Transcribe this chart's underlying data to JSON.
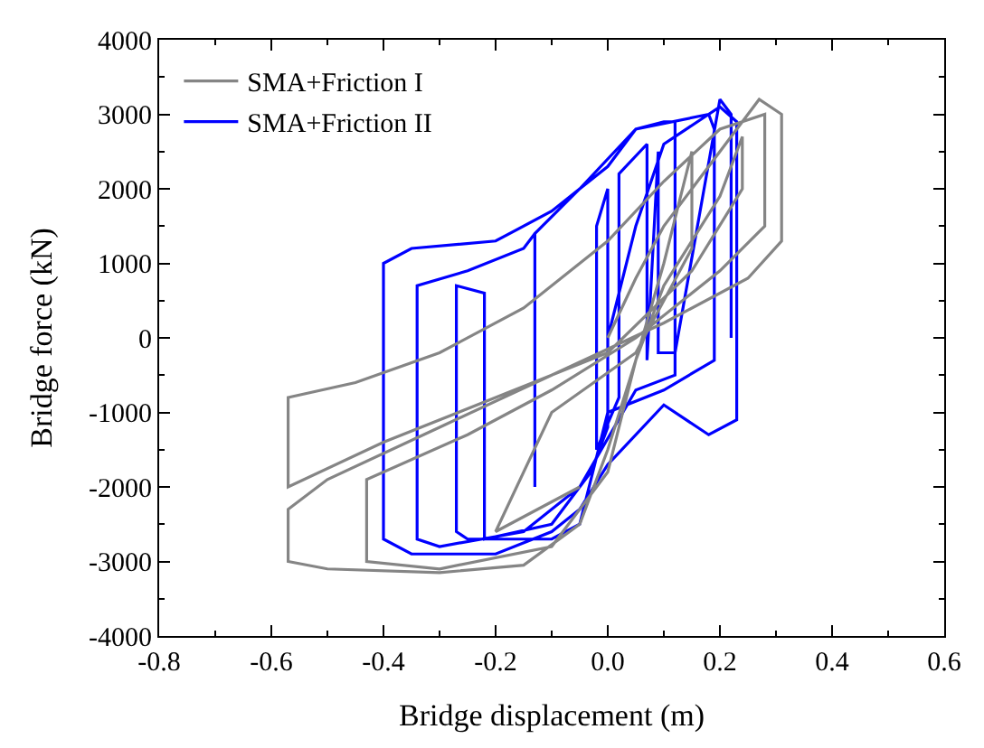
{
  "chart_data": {
    "type": "line",
    "xlabel": "Bridge displacement (m)",
    "ylabel": "Bridge force (kN)",
    "xlim": [
      -0.8,
      0.6
    ],
    "xticks": [
      {
        "value": -0.8,
        "label": "-0.8"
      },
      {
        "value": -0.6,
        "label": "-0.6"
      },
      {
        "value": -0.4,
        "label": "-0.4"
      },
      {
        "value": -0.2,
        "label": "-0.2"
      },
      {
        "value": 0,
        "label": "0.0"
      },
      {
        "value": 0.2,
        "label": "0.2"
      },
      {
        "value": 0.4,
        "label": "0.4"
      },
      {
        "value": 0.6,
        "label": "0.6"
      }
    ],
    "ylim": [
      -4000,
      4000
    ],
    "yticks": [
      -4000,
      -3000,
      -2000,
      -1000,
      0,
      1000,
      2000,
      3000,
      4000
    ],
    "legend": "top left",
    "marker": "none",
    "line_style": "solid",
    "series": [
      {
        "name": "SMA+Friction I",
        "color": "#858585",
        "x": [
          0,
          0.05,
          0.1,
          0.2,
          0.27,
          0.31,
          0.31,
          0.25,
          0.1,
          -0.1,
          -0.3,
          -0.5,
          -0.57,
          -0.57,
          -0.5,
          -0.3,
          -0.15,
          -0.05,
          0,
          0.05,
          0.1,
          0.2,
          0.24,
          0.24,
          0.15,
          0,
          -0.2,
          -0.4,
          -0.57,
          -0.57,
          -0.45,
          -0.3,
          -0.15,
          0,
          0.1,
          0.2,
          0.28,
          0.28,
          0.2,
          0.05,
          -0.1,
          -0.25,
          -0.43,
          -0.43,
          -0.3,
          -0.1,
          0,
          0.05,
          0.1,
          0.15,
          0.15,
          0.05,
          -0.1,
          -0.2,
          -0.05
        ],
        "values": [
          0,
          800,
          1500,
          2500,
          3200,
          3000,
          1300,
          800,
          200,
          -500,
          -1200,
          -1900,
          -2300,
          -3000,
          -3100,
          -3150,
          -3050,
          -2500,
          -1500,
          -300,
          700,
          1900,
          2700,
          2000,
          900,
          -200,
          -800,
          -1400,
          -2000,
          -800,
          -600,
          -200,
          400,
          1300,
          2100,
          2800,
          3000,
          1500,
          900,
          0,
          -700,
          -1300,
          -1900,
          -3000,
          -3100,
          -2800,
          -1800,
          -300,
          1000,
          2500,
          1200,
          -200,
          -1000,
          -2600,
          -2000
        ]
      },
      {
        "name": "SMA+Friction II",
        "color": "#0000ff",
        "x": [
          0,
          0.05,
          0.1,
          0.2,
          0.23,
          0.23,
          0.18,
          0.1,
          0,
          -0.05,
          -0.1,
          -0.2,
          -0.35,
          -0.4,
          -0.4,
          -0.35,
          -0.2,
          -0.1,
          0,
          0.05,
          0.1,
          0.12,
          0.12,
          0.05,
          -0.05,
          -0.15,
          -0.3,
          -0.34,
          -0.34,
          -0.25,
          -0.15,
          -0.13,
          -0.13,
          -0.13,
          -0.05,
          0.05,
          0.18,
          0.19,
          0.19,
          0.1,
          0,
          -0.05,
          -0.1,
          -0.25,
          -0.27,
          -0.27,
          -0.22,
          -0.22,
          -0.1,
          -0.03,
          0,
          0,
          -0.02,
          -0.02,
          0.02,
          0.02,
          0.07,
          0.07,
          0.09,
          0.09,
          0.12,
          0.2,
          0.22,
          0.22
        ],
        "values": [
          0,
          1500,
          2600,
          3100,
          2900,
          -1100,
          -1300,
          -900,
          -1700,
          -2300,
          -2600,
          -2900,
          -2900,
          -2700,
          1000,
          1200,
          1300,
          1700,
          2300,
          2800,
          2900,
          2900,
          -500,
          -700,
          -2000,
          -2600,
          -2800,
          -2700,
          700,
          900,
          1200,
          1400,
          -2000,
          1400,
          2000,
          2800,
          3000,
          2800,
          -300,
          -700,
          -1000,
          -2500,
          -2700,
          -2700,
          -2600,
          700,
          600,
          -2700,
          -2500,
          -1800,
          -1200,
          2000,
          1500,
          -1500,
          -800,
          2200,
          2600,
          -300,
          2500,
          -200,
          -200,
          3200,
          3000,
          0
        ]
      }
    ]
  }
}
